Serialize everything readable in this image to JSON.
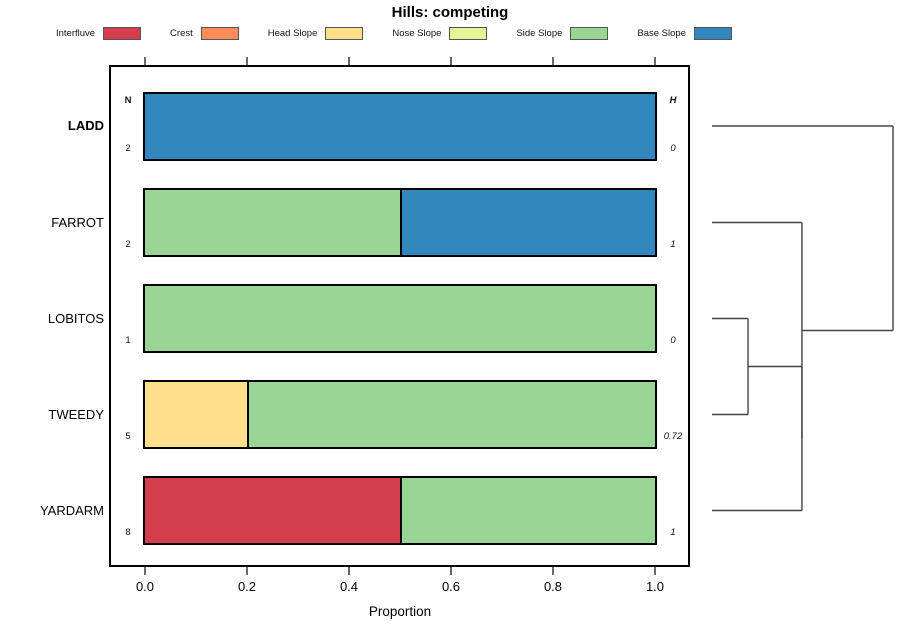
{
  "chart_data": {
    "type": "bar",
    "variant": "horizontal-stacked-proportion",
    "title": "Hills: competing",
    "xlabel": "Proportion",
    "xlim": [
      0.0,
      1.0
    ],
    "xticks": [
      "0.0",
      "0.2",
      "0.4",
      "0.6",
      "0.8",
      "1.0"
    ],
    "grid": false,
    "legend_position": "top",
    "categories": [
      "Interfluve",
      "Crest",
      "Head Slope",
      "Nose Slope",
      "Side Slope",
      "Base Slope"
    ],
    "colors": {
      "Interfluve": "#D53E4F",
      "Crest": "#FC8D59",
      "Head Slope": "#FEE08B",
      "Nose Slope": "#E6F598",
      "Side Slope": "#99D594",
      "Base Slope": "#3288BD"
    },
    "columns": {
      "n_header": "N",
      "h_header": "H"
    },
    "rows": [
      {
        "label": "LADD",
        "bold": true,
        "n": "2",
        "h": "0",
        "segments": [
          {
            "category": "Base Slope",
            "value": 1.0
          }
        ]
      },
      {
        "label": "FARROT",
        "bold": false,
        "n": "2",
        "h": "1",
        "segments": [
          {
            "category": "Side Slope",
            "value": 0.5
          },
          {
            "category": "Base Slope",
            "value": 0.5
          }
        ]
      },
      {
        "label": "LOBITOS",
        "bold": false,
        "n": "1",
        "h": "0",
        "segments": [
          {
            "category": "Side Slope",
            "value": 1.0
          }
        ]
      },
      {
        "label": "TWEEDY",
        "bold": false,
        "n": "5",
        "h": "0.72",
        "segments": [
          {
            "category": "Head Slope",
            "value": 0.2
          },
          {
            "category": "Side Slope",
            "value": 0.8
          }
        ]
      },
      {
        "label": "YARDARM",
        "bold": false,
        "n": "8",
        "h": "1",
        "segments": [
          {
            "category": "Interfluve",
            "value": 0.5
          },
          {
            "category": "Side Slope",
            "value": 0.5
          }
        ]
      }
    ],
    "dendrogram": {
      "orientation": "right",
      "tree": {
        "h": 1.0,
        "children": [
          {
            "leaf": "LADD"
          },
          {
            "h": 0.497,
            "children": [
              {
                "leaf": "FARROT"
              },
              {
                "h": 0.497,
                "children": [
                  {
                    "h": 0.199,
                    "children": [
                      {
                        "leaf": "LOBITOS"
                      },
                      {
                        "leaf": "TWEEDY"
                      }
                    ]
                  },
                  {
                    "leaf": "YARDARM"
                  }
                ]
              }
            ]
          }
        ]
      }
    }
  }
}
